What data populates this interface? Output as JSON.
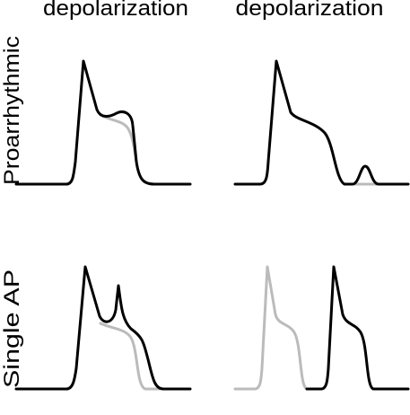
{
  "columns": [
    {
      "label": "depolarization"
    },
    {
      "label": "depolarization"
    }
  ],
  "rows": [
    {
      "label": "Proarrhythmic"
    },
    {
      "label": "Single AP"
    }
  ]
}
